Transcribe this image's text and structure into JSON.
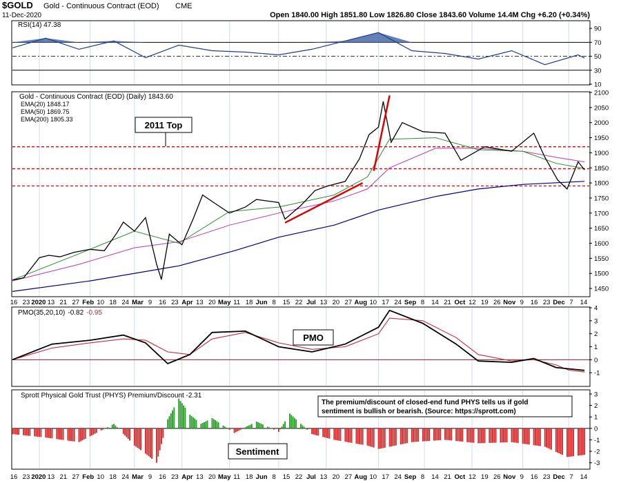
{
  "header": {
    "symbol": "$GOLD",
    "name": "Gold - Continuous Contract (EOD)",
    "exchange": "CME",
    "date": "11-Dec-2020",
    "quote": "Open 1840.00  High 1851.80  Low 1826.80  Close 1843.60  Volume 14.4M  Chg +6.20 (+0.34%)"
  },
  "colors": {
    "price": "#000000",
    "ema20": "#2e8b2e",
    "ema50": "#b23ab2",
    "ema200": "#000080",
    "resistance": "#dd0000",
    "rsi_fill": "#4a6aa8",
    "pmo": "#000000",
    "pmo_signal": "#c82a3c",
    "phys_pos": "#2aa02a",
    "phys_neg": "#d82a2a"
  },
  "chart_data": [
    {
      "type": "line",
      "panel": "rsi",
      "legend": "RSI(14) 47.38",
      "ylim": [
        10,
        100
      ],
      "yticks": [
        10,
        30,
        50,
        70,
        90
      ],
      "levels": [
        70,
        30
      ],
      "mid": 50,
      "x_start": "2019-12-16",
      "x_end": "2020-12-11",
      "x": [
        "2019-12-16",
        "2020-01-06",
        "2020-01-27",
        "2020-02-18",
        "2020-03-09",
        "2020-03-30",
        "2020-04-20",
        "2020-05-11",
        "2020-06-01",
        "2020-06-22",
        "2020-07-13",
        "2020-08-03",
        "2020-08-24",
        "2020-09-14",
        "2020-10-05",
        "2020-10-26",
        "2020-11-16",
        "2020-12-07",
        "2020-12-11"
      ],
      "values": [
        62,
        76,
        60,
        72,
        48,
        66,
        58,
        56,
        52,
        60,
        72,
        84,
        58,
        54,
        46,
        58,
        38,
        52,
        47.38
      ]
    },
    {
      "type": "line",
      "panel": "price",
      "title": "Gold - Continuous Contract (EOD) (Daily) 1843.60",
      "ylim": [
        1425,
        2100
      ],
      "yticks": [
        1450,
        1500,
        1550,
        1600,
        1650,
        1700,
        1750,
        1800,
        1850,
        1900,
        1950,
        2000,
        2050,
        2100
      ],
      "x_start": "2019-12-16",
      "x_end": "2020-12-11",
      "series": [
        {
          "name": "Gold",
          "x": [
            "2019-12-16",
            "2019-12-23",
            "2020-01-02",
            "2020-01-08",
            "2020-01-15",
            "2020-01-24",
            "2020-02-03",
            "2020-02-12",
            "2020-02-20",
            "2020-02-24",
            "2020-03-02",
            "2020-03-09",
            "2020-03-16",
            "2020-03-19",
            "2020-03-24",
            "2020-04-01",
            "2020-04-08",
            "2020-04-14",
            "2020-04-21",
            "2020-05-01",
            "2020-05-11",
            "2020-05-18",
            "2020-06-01",
            "2020-06-05",
            "2020-06-15",
            "2020-06-24",
            "2020-07-02",
            "2020-07-13",
            "2020-07-22",
            "2020-07-28",
            "2020-08-03",
            "2020-08-06",
            "2020-08-11",
            "2020-08-18",
            "2020-08-31",
            "2020-09-14",
            "2020-09-24",
            "2020-10-09",
            "2020-10-26",
            "2020-11-09",
            "2020-11-16",
            "2020-11-24",
            "2020-11-30",
            "2020-12-07",
            "2020-12-11"
          ],
          "values": [
            1478,
            1485,
            1552,
            1560,
            1555,
            1570,
            1580,
            1575,
            1635,
            1670,
            1640,
            1685,
            1530,
            1480,
            1630,
            1595,
            1680,
            1760,
            1735,
            1700,
            1720,
            1745,
            1735,
            1680,
            1725,
            1775,
            1790,
            1805,
            1880,
            1960,
            1985,
            2070,
            1935,
            2000,
            1970,
            1965,
            1875,
            1920,
            1905,
            1965,
            1885,
            1810,
            1780,
            1870,
            1843.6
          ]
        },
        {
          "name": "EMA(20) 1848.17",
          "x": [
            "2019-12-16",
            "2020-01-27",
            "2020-03-02",
            "2020-03-30",
            "2020-05-01",
            "2020-06-01",
            "2020-07-06",
            "2020-07-27",
            "2020-08-10",
            "2020-09-08",
            "2020-10-05",
            "2020-11-02",
            "2020-11-23",
            "2020-12-11"
          ],
          "values": [
            1478,
            1565,
            1640,
            1600,
            1705,
            1720,
            1760,
            1820,
            1945,
            1950,
            1910,
            1905,
            1865,
            1848.17
          ]
        },
        {
          "name": "EMA(50) 1869.75",
          "x": [
            "2019-12-16",
            "2020-01-27",
            "2020-03-02",
            "2020-03-30",
            "2020-05-01",
            "2020-06-01",
            "2020-07-06",
            "2020-07-27",
            "2020-08-10",
            "2020-09-08",
            "2020-10-05",
            "2020-11-02",
            "2020-11-23",
            "2020-12-11"
          ],
          "values": [
            1475,
            1530,
            1585,
            1605,
            1660,
            1700,
            1740,
            1780,
            1850,
            1915,
            1915,
            1905,
            1885,
            1869.75
          ]
        },
        {
          "name": "EMA(200) 1805.33",
          "x": [
            "2019-12-16",
            "2020-02-03",
            "2020-03-30",
            "2020-05-04",
            "2020-06-01",
            "2020-07-06",
            "2020-08-03",
            "2020-09-08",
            "2020-10-05",
            "2020-11-02",
            "2020-12-11"
          ],
          "values": [
            1440,
            1475,
            1525,
            1575,
            1620,
            1660,
            1710,
            1755,
            1780,
            1795,
            1805.33
          ]
        }
      ],
      "annotation": "2011 Top",
      "levels": [
        1920,
        1847,
        1790
      ],
      "trendlines": [
        {
          "x": [
            "2020-06-05",
            "2020-07-24"
          ],
          "values": [
            1668,
            1800
          ]
        },
        {
          "x": [
            "2020-07-31",
            "2020-08-10"
          ],
          "values": [
            1840,
            2090
          ]
        }
      ]
    },
    {
      "type": "line",
      "panel": "pmo",
      "legend_prefix": "PMO(35,20,10)",
      "legend_values": [
        "-0.82",
        "-0.95"
      ],
      "annotation": "PMO",
      "ylim": [
        -2,
        4
      ],
      "yticks": [
        -1,
        0,
        1,
        2,
        3,
        4
      ],
      "x_start": "2019-12-16",
      "x_end": "2020-12-11",
      "series": [
        {
          "name": "PMO",
          "x": [
            "2019-12-16",
            "2020-01-10",
            "2020-02-03",
            "2020-02-24",
            "2020-03-09",
            "2020-03-23",
            "2020-04-06",
            "2020-04-20",
            "2020-05-11",
            "2020-06-01",
            "2020-06-22",
            "2020-07-13",
            "2020-08-03",
            "2020-08-10",
            "2020-08-31",
            "2020-09-21",
            "2020-10-05",
            "2020-10-26",
            "2020-11-09",
            "2020-11-23",
            "2020-12-01",
            "2020-12-11"
          ],
          "values": [
            0,
            1.2,
            1.5,
            1.9,
            1.3,
            -0.3,
            0.4,
            2.1,
            2.2,
            1.0,
            0.6,
            1.2,
            2.5,
            3.8,
            2.8,
            1.2,
            -0.1,
            -0.2,
            0.1,
            -0.6,
            -0.7,
            -0.82
          ]
        },
        {
          "name": "Signal",
          "x": [
            "2019-12-16",
            "2020-01-10",
            "2020-02-03",
            "2020-02-24",
            "2020-03-09",
            "2020-03-23",
            "2020-04-06",
            "2020-04-20",
            "2020-05-11",
            "2020-06-01",
            "2020-06-22",
            "2020-07-13",
            "2020-08-03",
            "2020-08-10",
            "2020-08-31",
            "2020-09-21",
            "2020-10-05",
            "2020-10-26",
            "2020-11-09",
            "2020-11-23",
            "2020-12-01",
            "2020-12-11"
          ],
          "values": [
            0,
            0.9,
            1.3,
            1.6,
            1.5,
            0.6,
            0.4,
            1.6,
            2.1,
            1.3,
            0.8,
            1.0,
            2.0,
            3.2,
            3.0,
            1.7,
            0.4,
            -0.1,
            0.0,
            -0.4,
            -0.8,
            -0.95
          ]
        }
      ]
    },
    {
      "type": "bar",
      "panel": "phys",
      "legend": "Sprott Physical Gold Trust (PHYS) Premium/Discount -2.31",
      "note": "The premium/discount of closed-end fund PHYS tells us if gold sentiment is bullish or bearish. (Source: https://sprott.com)",
      "annotation": "Sentiment",
      "ylim": [
        -3.5,
        3.3
      ],
      "yticks": [
        -3,
        -2,
        -1,
        0,
        1,
        2,
        3
      ],
      "x_start": "2019-12-16",
      "x_end": "2020-12-11",
      "x": [
        "2019-12-16",
        "2020-01-06",
        "2020-01-27",
        "2020-02-18",
        "2020-03-02",
        "2020-03-09",
        "2020-03-16",
        "2020-03-23",
        "2020-03-30",
        "2020-04-06",
        "2020-04-13",
        "2020-04-20",
        "2020-05-04",
        "2020-05-18",
        "2020-06-01",
        "2020-06-08",
        "2020-06-22",
        "2020-07-06",
        "2020-07-27",
        "2020-08-03",
        "2020-08-24",
        "2020-09-14",
        "2020-10-05",
        "2020-10-26",
        "2020-11-16",
        "2020-11-30",
        "2020-12-11"
      ],
      "values": [
        -0.5,
        -0.8,
        -1.2,
        0.4,
        -1.5,
        -2.2,
        -3.0,
        0.8,
        2.6,
        1.2,
        0.4,
        0.9,
        -0.4,
        0.6,
        -0.3,
        1.3,
        -0.5,
        -1.0,
        -1.5,
        -1.8,
        -1.2,
        -1.0,
        -1.3,
        -1.2,
        -1.6,
        -2.5,
        -2.31
      ]
    }
  ],
  "axis_labels": {
    "ticks": [
      "16",
      "23",
      "2020",
      "13",
      "21",
      "27",
      "Feb",
      "10",
      "18",
      "24",
      "Mar",
      "9",
      "16",
      "23",
      "Apr",
      "13",
      "20",
      "May",
      "11",
      "18",
      "Jun",
      "8",
      "15",
      "22",
      "Jul",
      "13",
      "20",
      "27",
      "Aug",
      "10",
      "17",
      "24",
      "Sep",
      "8",
      "14",
      "21",
      "Oct",
      "12",
      "19",
      "26",
      "Nov",
      "9",
      "16",
      "23",
      "Dec",
      "7",
      "14"
    ]
  }
}
